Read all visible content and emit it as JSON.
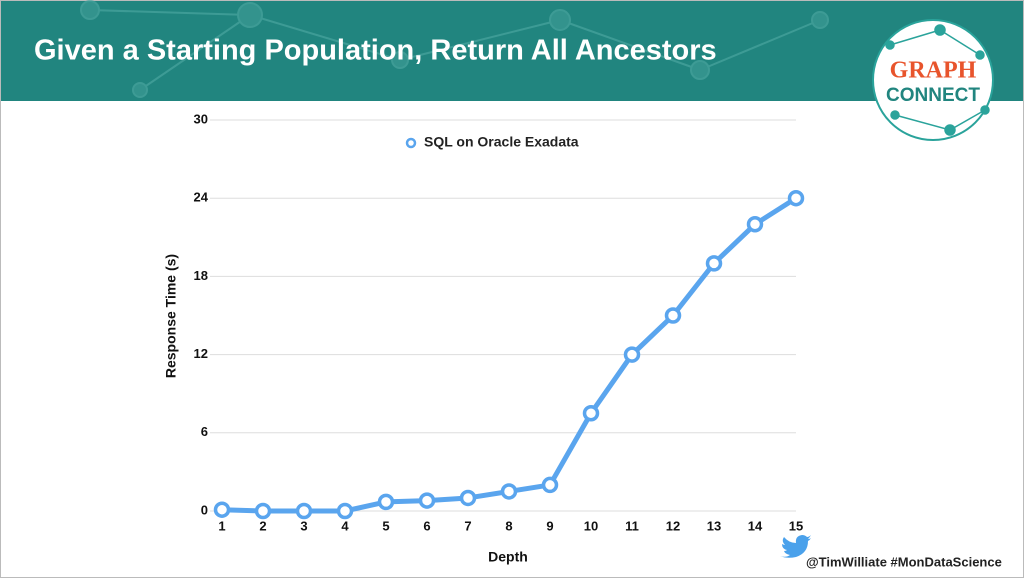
{
  "chart_data": {
    "type": "line",
    "title": "Given a Starting Population, Return All Ancestors",
    "x_label": "Depth",
    "y_label": "Response Time (s)",
    "x": [
      1,
      2,
      3,
      4,
      5,
      6,
      7,
      8,
      9,
      10,
      11,
      12,
      13,
      14,
      15
    ],
    "series": [
      {
        "name": "SQL on Oracle Exadata",
        "color": "#5aa5ee",
        "values": [
          0.1,
          0,
          0,
          0,
          0.7,
          0.8,
          1.0,
          1.5,
          2.0,
          7.5,
          12,
          15,
          19,
          22,
          24
        ]
      }
    ],
    "xlim": [
      1,
      15
    ],
    "xticks": [
      1,
      2,
      3,
      4,
      5,
      6,
      7,
      8,
      9,
      10,
      11,
      12,
      13,
      14,
      15
    ],
    "ylim": [
      0,
      30
    ],
    "yticks": [
      0,
      6,
      12,
      18,
      24,
      30
    ],
    "grid": true,
    "legend": "top"
  },
  "slide": {
    "logo_top": "GRAPH",
    "logo_bottom": "CONNECT",
    "footer": "@TimWilliate #MonDataScience"
  }
}
